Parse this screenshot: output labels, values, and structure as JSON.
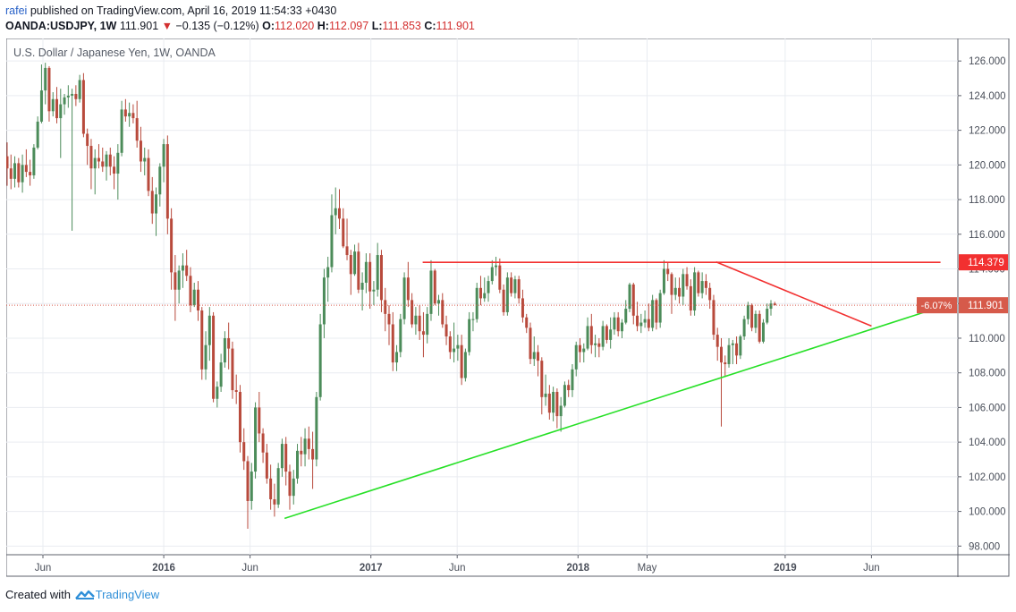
{
  "header": {
    "user": "rafei",
    "published_text": "published on TradingView.com, April 16, 2019 11:54:33 +0430",
    "symbol": "OANDA:USDJPY, 1W",
    "last": "111.901",
    "change": "−0.135 (−0.12%)",
    "open_label": "O:",
    "open": "112.020",
    "high_label": "H:",
    "high": "112.097",
    "low_label": "L:",
    "low": "111.853",
    "close_label": "C:",
    "close": "111.901"
  },
  "colors": {
    "up": "#4c8c5a",
    "down": "#b84a3c",
    "resistance": "#f23030",
    "support": "#27e027",
    "price_tag": "#d65a4a",
    "level_tag": "#f23030"
  },
  "chart_data": {
    "type": "candlestick",
    "title": "U.S. Dollar / Japanese Yen, 1W, OANDA",
    "x_ticks": [
      "Jun",
      "2016",
      "Jun",
      "2017",
      "Jun",
      "2018",
      "May",
      "2019",
      "Jun"
    ],
    "y_ticks": [
      "98.000",
      "100.000",
      "102.000",
      "104.000",
      "106.000",
      "108.000",
      "110.000",
      "112.000",
      "114.000",
      "116.000",
      "118.000",
      "120.000",
      "122.000",
      "124.000",
      "126.000"
    ],
    "ylim": [
      97.5,
      127.3
    ],
    "price_tag": "111.901",
    "level_tag": "114.379",
    "pct_tag": "-6.07%",
    "grid": true,
    "candles": [
      [
        120.5,
        121.3,
        118.8,
        119.8
      ],
      [
        119.8,
        120.6,
        118.6,
        119.2
      ],
      [
        119.2,
        120.5,
        118.7,
        120.1
      ],
      [
        120.1,
        120.4,
        118.7,
        119.0
      ],
      [
        119.0,
        120.6,
        118.4,
        120.0
      ],
      [
        120.0,
        120.9,
        119.3,
        119.6
      ],
      [
        119.6,
        120.3,
        118.8,
        119.4
      ],
      [
        119.4,
        121.2,
        119.2,
        121.0
      ],
      [
        121.0,
        122.8,
        120.9,
        122.5
      ],
      [
        122.5,
        125.8,
        122.4,
        124.3
      ],
      [
        124.3,
        125.9,
        123.5,
        125.6
      ],
      [
        125.6,
        125.7,
        122.5,
        123.1
      ],
      [
        123.1,
        124.2,
        122.8,
        123.8
      ],
      [
        123.8,
        124.5,
        122.4,
        122.7
      ],
      [
        122.7,
        124.4,
        120.4,
        123.5
      ],
      [
        123.5,
        124.1,
        122.9,
        123.9
      ],
      [
        123.9,
        124.6,
        123.3,
        124.0
      ],
      [
        124.0,
        124.4,
        116.2,
        124.1
      ],
      [
        124.1,
        124.6,
        123.4,
        123.8
      ],
      [
        123.8,
        125.2,
        123.6,
        124.9
      ],
      [
        124.9,
        125.3,
        121.6,
        121.8
      ],
      [
        121.8,
        122.1,
        120.0,
        121.1
      ],
      [
        121.1,
        121.5,
        118.6,
        119.8
      ],
      [
        119.8,
        120.9,
        118.3,
        120.4
      ],
      [
        120.4,
        121.2,
        119.8,
        120.2
      ],
      [
        120.2,
        121.0,
        119.6,
        119.9
      ],
      [
        119.9,
        120.8,
        119.1,
        120.6
      ],
      [
        120.6,
        121.0,
        119.4,
        119.9
      ],
      [
        119.9,
        120.5,
        118.6,
        119.5
      ],
      [
        119.5,
        121.2,
        118.0,
        120.7
      ],
      [
        120.7,
        123.7,
        120.5,
        123.2
      ],
      [
        123.2,
        123.8,
        122.5,
        122.8
      ],
      [
        122.8,
        123.6,
        122.2,
        123.0
      ],
      [
        123.0,
        123.5,
        122.4,
        122.7
      ],
      [
        122.7,
        123.7,
        121.0,
        121.4
      ],
      [
        121.4,
        122.2,
        119.6,
        120.2
      ],
      [
        120.2,
        121.0,
        119.4,
        120.4
      ],
      [
        120.4,
        120.9,
        118.2,
        118.5
      ],
      [
        118.5,
        119.3,
        116.6,
        117.2
      ],
      [
        117.2,
        118.7,
        115.9,
        118.3
      ],
      [
        118.3,
        120.1,
        117.6,
        119.9
      ],
      [
        119.9,
        121.5,
        119.0,
        121.2
      ],
      [
        121.2,
        121.7,
        116.0,
        116.9
      ],
      [
        116.9,
        117.5,
        112.8,
        113.8
      ],
      [
        113.8,
        114.8,
        111.0,
        112.8
      ],
      [
        112.8,
        114.2,
        112.0,
        113.9
      ],
      [
        113.9,
        114.9,
        112.9,
        114.2
      ],
      [
        114.2,
        115.1,
        113.3,
        113.6
      ],
      [
        113.6,
        114.1,
        111.5,
        111.9
      ],
      [
        111.9,
        113.2,
        111.8,
        112.8
      ],
      [
        112.8,
        113.3,
        111.0,
        111.6
      ],
      [
        111.6,
        111.8,
        107.6,
        108.2
      ],
      [
        108.2,
        110.4,
        107.6,
        109.6
      ],
      [
        109.6,
        111.8,
        108.7,
        111.3
      ],
      [
        111.3,
        111.5,
        106.3,
        106.5
      ],
      [
        106.5,
        107.5,
        106.0,
        107.2
      ],
      [
        107.2,
        109.1,
        106.9,
        108.6
      ],
      [
        108.6,
        110.4,
        108.3,
        110.0
      ],
      [
        110.0,
        110.9,
        108.2,
        109.4
      ],
      [
        109.4,
        109.8,
        106.5,
        107.0
      ],
      [
        107.0,
        107.9,
        106.2,
        106.9
      ],
      [
        106.9,
        107.3,
        103.4,
        104.0
      ],
      [
        104.0,
        104.8,
        102.4,
        102.9
      ],
      [
        102.9,
        103.2,
        99.0,
        100.6
      ],
      [
        100.6,
        102.8,
        100.1,
        102.3
      ],
      [
        102.3,
        106.3,
        101.9,
        106.0
      ],
      [
        106.0,
        106.9,
        104.0,
        104.5
      ],
      [
        104.5,
        104.8,
        102.8,
        103.4
      ],
      [
        103.4,
        103.9,
        101.6,
        101.9
      ],
      [
        101.9,
        102.7,
        100.1,
        100.7
      ],
      [
        100.7,
        101.6,
        99.7,
        100.4
      ],
      [
        100.4,
        102.8,
        100.2,
        102.5
      ],
      [
        102.5,
        104.2,
        102.0,
        103.9
      ],
      [
        103.9,
        104.3,
        101.5,
        102.3
      ],
      [
        102.3,
        102.7,
        100.1,
        100.9
      ],
      [
        100.9,
        102.4,
        100.4,
        101.9
      ],
      [
        101.9,
        103.9,
        101.6,
        103.5
      ],
      [
        103.5,
        104.3,
        102.6,
        103.3
      ],
      [
        103.3,
        104.8,
        102.6,
        104.2
      ],
      [
        104.2,
        104.9,
        103.0,
        103.6
      ],
      [
        103.6,
        104.6,
        101.3,
        103.0
      ],
      [
        103.0,
        106.9,
        102.6,
        106.6
      ],
      [
        106.6,
        111.4,
        106.4,
        110.8
      ],
      [
        110.8,
        114.0,
        110.0,
        113.5
      ],
      [
        113.5,
        114.7,
        112.1,
        114.1
      ],
      [
        114.1,
        118.3,
        113.8,
        117.1
      ],
      [
        117.1,
        118.7,
        116.0,
        117.5
      ],
      [
        117.5,
        118.6,
        116.3,
        116.9
      ],
      [
        116.9,
        117.5,
        115.2,
        115.3
      ],
      [
        115.3,
        116.9,
        114.5,
        114.8
      ],
      [
        114.8,
        115.1,
        112.5,
        113.7
      ],
      [
        113.7,
        115.4,
        113.6,
        115.0
      ],
      [
        115.0,
        115.5,
        112.6,
        112.8
      ],
      [
        112.8,
        113.8,
        111.6,
        113.2
      ],
      [
        113.2,
        114.9,
        112.6,
        114.4
      ],
      [
        114.4,
        114.9,
        111.7,
        112.7
      ],
      [
        112.7,
        113.3,
        111.9,
        112.8
      ],
      [
        112.8,
        115.5,
        112.4,
        114.8
      ],
      [
        114.8,
        115.1,
        111.5,
        112.2
      ],
      [
        112.2,
        112.9,
        110.4,
        111.4
      ],
      [
        111.4,
        111.9,
        109.6,
        110.8
      ],
      [
        110.8,
        111.5,
        108.1,
        108.6
      ],
      [
        108.6,
        109.6,
        108.1,
        109.2
      ],
      [
        109.2,
        111.4,
        108.9,
        111.1
      ],
      [
        111.1,
        113.8,
        110.8,
        113.5
      ],
      [
        113.5,
        114.4,
        111.8,
        112.2
      ],
      [
        112.2,
        112.6,
        110.6,
        110.8
      ],
      [
        110.8,
        111.8,
        110.2,
        111.3
      ],
      [
        111.3,
        111.9,
        109.9,
        110.4
      ],
      [
        110.4,
        111.5,
        108.9,
        110.2
      ],
      [
        110.2,
        111.8,
        109.7,
        111.4
      ],
      [
        111.4,
        114.5,
        111.0,
        113.9
      ],
      [
        113.9,
        114.0,
        111.9,
        112.0
      ],
      [
        112.0,
        112.5,
        111.3,
        112.2
      ],
      [
        112.2,
        112.6,
        110.6,
        110.8
      ],
      [
        110.8,
        111.3,
        109.6,
        110.1
      ],
      [
        110.1,
        110.4,
        108.8,
        109.2
      ],
      [
        109.2,
        110.9,
        108.6,
        109.4
      ],
      [
        109.4,
        110.2,
        108.7,
        109.6
      ],
      [
        109.6,
        110.2,
        107.3,
        107.7
      ],
      [
        107.7,
        109.4,
        107.5,
        109.2
      ],
      [
        109.2,
        111.5,
        109.0,
        111.1
      ],
      [
        111.1,
        111.5,
        110.4,
        111.1
      ],
      [
        111.1,
        113.2,
        110.9,
        112.9
      ],
      [
        112.9,
        113.6,
        111.9,
        112.3
      ],
      [
        112.3,
        113.5,
        112.1,
        112.6
      ],
      [
        112.6,
        113.6,
        112.1,
        113.3
      ],
      [
        113.3,
        114.5,
        113.1,
        114.1
      ],
      [
        114.1,
        114.7,
        113.6,
        114.2
      ],
      [
        114.2,
        114.6,
        112.6,
        112.8
      ],
      [
        112.8,
        113.1,
        111.3,
        111.5
      ],
      [
        111.5,
        113.8,
        111.3,
        113.5
      ],
      [
        113.5,
        113.8,
        112.4,
        112.6
      ],
      [
        112.6,
        113.6,
        112.3,
        113.4
      ],
      [
        113.4,
        113.6,
        112.0,
        112.3
      ],
      [
        112.3,
        112.8,
        110.9,
        111.2
      ],
      [
        111.2,
        111.4,
        110.3,
        110.6
      ],
      [
        110.6,
        110.9,
        108.5,
        108.8
      ],
      [
        108.8,
        110.1,
        108.4,
        109.2
      ],
      [
        109.2,
        109.6,
        107.8,
        108.7
      ],
      [
        108.7,
        108.9,
        105.6,
        106.6
      ],
      [
        106.6,
        107.9,
        106.1,
        106.8
      ],
      [
        106.8,
        107.3,
        105.3,
        105.7
      ],
      [
        105.7,
        107.2,
        105.2,
        106.9
      ],
      [
        106.9,
        107.1,
        104.8,
        105.5
      ],
      [
        105.5,
        106.6,
        104.6,
        106.1
      ],
      [
        106.1,
        107.5,
        106.0,
        107.3
      ],
      [
        107.3,
        107.6,
        106.6,
        107.0
      ],
      [
        107.0,
        108.5,
        106.6,
        108.2
      ],
      [
        108.2,
        109.8,
        107.8,
        109.6
      ],
      [
        109.6,
        110.0,
        108.6,
        109.2
      ],
      [
        109.2,
        109.7,
        108.6,
        109.4
      ],
      [
        109.4,
        111.2,
        109.3,
        110.7
      ],
      [
        110.7,
        111.4,
        109.1,
        109.6
      ],
      [
        109.6,
        110.2,
        108.9,
        109.7
      ],
      [
        109.7,
        110.0,
        108.9,
        109.5
      ],
      [
        109.5,
        111.0,
        109.3,
        110.7
      ],
      [
        110.7,
        110.8,
        109.7,
        109.9
      ],
      [
        109.9,
        111.2,
        109.4,
        110.5
      ],
      [
        110.5,
        111.5,
        110.2,
        111.2
      ],
      [
        111.2,
        111.5,
        110.1,
        110.4
      ],
      [
        110.4,
        111.1,
        110.0,
        110.9
      ],
      [
        110.9,
        112.2,
        110.8,
        111.7
      ],
      [
        111.7,
        113.2,
        111.5,
        113.1
      ],
      [
        113.1,
        113.2,
        110.8,
        111.3
      ],
      [
        111.3,
        112.1,
        110.4,
        110.7
      ],
      [
        110.7,
        111.4,
        110.3,
        110.9
      ],
      [
        110.9,
        111.6,
        110.6,
        111.1
      ],
      [
        111.1,
        112.0,
        110.4,
        110.6
      ],
      [
        110.6,
        112.5,
        110.4,
        112.2
      ],
      [
        112.2,
        112.3,
        110.5,
        110.9
      ],
      [
        110.9,
        112.8,
        110.6,
        112.6
      ],
      [
        112.6,
        114.5,
        112.5,
        114.0
      ],
      [
        114.0,
        114.4,
        113.3,
        113.7
      ],
      [
        113.7,
        113.8,
        111.4,
        112.5
      ],
      [
        112.5,
        113.5,
        112.2,
        112.9
      ],
      [
        112.9,
        113.5,
        112.0,
        112.4
      ],
      [
        112.4,
        114.0,
        111.9,
        113.7
      ],
      [
        113.7,
        114.1,
        112.8,
        113.0
      ],
      [
        113.0,
        113.4,
        111.3,
        111.6
      ],
      [
        111.6,
        114.1,
        111.3,
        113.8
      ],
      [
        113.8,
        113.9,
        112.4,
        112.6
      ],
      [
        112.6,
        113.8,
        112.3,
        113.3
      ],
      [
        113.3,
        113.7,
        112.5,
        112.9
      ],
      [
        112.9,
        113.2,
        111.7,
        112.2
      ],
      [
        112.2,
        112.5,
        109.9,
        110.2
      ],
      [
        110.2,
        110.6,
        108.7,
        109.5
      ],
      [
        109.5,
        110.0,
        104.9,
        108.6
      ],
      [
        108.6,
        109.0,
        107.8,
        108.5
      ],
      [
        108.5,
        110.0,
        108.3,
        109.6
      ],
      [
        109.6,
        109.9,
        108.5,
        109.7
      ],
      [
        109.7,
        110.1,
        108.5,
        109.0
      ],
      [
        109.0,
        110.2,
        108.8,
        110.1
      ],
      [
        110.1,
        111.3,
        109.9,
        111.1
      ],
      [
        111.1,
        112.1,
        110.8,
        111.9
      ],
      [
        111.9,
        112.0,
        110.4,
        110.6
      ],
      [
        110.6,
        111.6,
        110.3,
        111.4
      ],
      [
        111.4,
        111.6,
        109.7,
        109.8
      ],
      [
        109.8,
        111.1,
        109.7,
        110.9
      ],
      [
        110.9,
        112.0,
        110.8,
        111.7
      ],
      [
        111.7,
        112.2,
        111.3,
        112.0
      ],
      [
        112.0,
        112.1,
        111.9,
        111.9
      ]
    ],
    "lines": [
      {
        "name": "resistance",
        "points": [
          [
            "2017-04",
            114.38
          ],
          [
            "2019-10",
            114.38
          ]
        ]
      },
      {
        "name": "descending",
        "points": [
          [
            "2018-09",
            114.4
          ],
          [
            "2019-06",
            110.7
          ]
        ]
      },
      {
        "name": "support",
        "points": [
          [
            "2016-08",
            99.6
          ],
          [
            "2019-10",
            111.8
          ]
        ]
      }
    ]
  },
  "footer": {
    "created_with": "Created with",
    "brand": "TradingView"
  }
}
